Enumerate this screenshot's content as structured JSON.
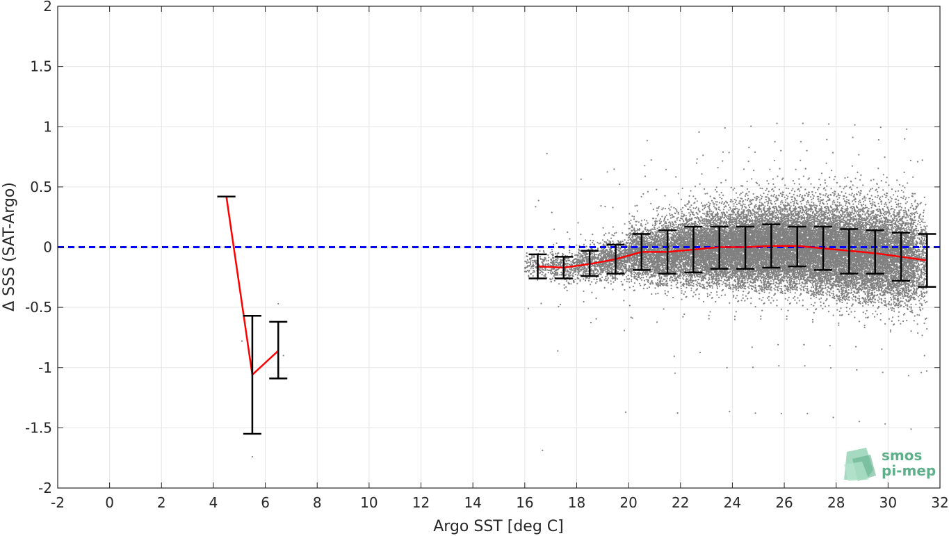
{
  "chart_data": {
    "type": "scatter",
    "xlabel": "Argo SST [deg C]",
    "ylabel": "Δ SSS (SAT-Argo)",
    "xlim": [
      -2,
      32
    ],
    "ylim": [
      -2,
      2
    ],
    "xticks": [
      -2,
      0,
      2,
      4,
      6,
      8,
      10,
      12,
      14,
      16,
      18,
      20,
      22,
      24,
      26,
      28,
      30,
      32
    ],
    "yticks": [
      -2,
      -1.5,
      -1,
      -0.5,
      0,
      0.5,
      1,
      1.5,
      2
    ],
    "xtick_labels": [
      "-2",
      "0",
      "2",
      "4",
      "6",
      "8",
      "10",
      "12",
      "14",
      "16",
      "18",
      "20",
      "22",
      "24",
      "26",
      "28",
      "30",
      "32"
    ],
    "ytick_labels": [
      "-2",
      "-1.5",
      "-1",
      "-0.5",
      "0",
      "0.5",
      "1",
      "1.5",
      "2"
    ],
    "grid": true,
    "reference_line": {
      "y": 0,
      "style": "dashed",
      "color": "#0000ff"
    },
    "scatter_color": "#808080",
    "mean_line_color": "#ff0000",
    "errorbar_color": "#000000",
    "scatter_cloud": {
      "description_points": [
        [
          18,
          -0.15,
          0.1,
          0.15
        ],
        [
          20,
          -0.05,
          0.2,
          0.25
        ],
        [
          22,
          -0.02,
          0.3,
          0.3
        ],
        [
          24,
          0.0,
          0.35,
          0.35
        ],
        [
          26,
          0.0,
          0.4,
          0.4
        ],
        [
          28,
          -0.02,
          0.45,
          0.45
        ],
        [
          30,
          -0.05,
          0.45,
          0.4
        ],
        [
          31,
          -0.08,
          0.35,
          0.3
        ]
      ]
    },
    "binned_stats": [
      {
        "x": 4.5,
        "mean": 0.42,
        "lower": 0.42,
        "upper": 0.42
      },
      {
        "x": 5.5,
        "mean": -1.06,
        "lower": -1.55,
        "upper": -0.57
      },
      {
        "x": 6.5,
        "mean": -0.86,
        "lower": -1.09,
        "upper": -0.62
      },
      {
        "x": 16.5,
        "mean": -0.16,
        "lower": -0.26,
        "upper": -0.06
      },
      {
        "x": 17.5,
        "mean": -0.17,
        "lower": -0.26,
        "upper": -0.08
      },
      {
        "x": 18.5,
        "mean": -0.14,
        "lower": -0.24,
        "upper": -0.03
      },
      {
        "x": 19.5,
        "mean": -0.1,
        "lower": -0.22,
        "upper": 0.02
      },
      {
        "x": 20.5,
        "mean": -0.04,
        "lower": -0.19,
        "upper": 0.11
      },
      {
        "x": 21.5,
        "mean": -0.04,
        "lower": -0.22,
        "upper": 0.14
      },
      {
        "x": 22.5,
        "mean": -0.02,
        "lower": -0.21,
        "upper": 0.17
      },
      {
        "x": 23.5,
        "mean": 0.0,
        "lower": -0.18,
        "upper": 0.17
      },
      {
        "x": 24.5,
        "mean": 0.0,
        "lower": -0.18,
        "upper": 0.17
      },
      {
        "x": 25.5,
        "mean": 0.01,
        "lower": -0.17,
        "upper": 0.19
      },
      {
        "x": 26.5,
        "mean": 0.01,
        "lower": -0.16,
        "upper": 0.17
      },
      {
        "x": 27.5,
        "mean": -0.01,
        "lower": -0.19,
        "upper": 0.17
      },
      {
        "x": 28.5,
        "mean": -0.03,
        "lower": -0.22,
        "upper": 0.15
      },
      {
        "x": 29.5,
        "mean": -0.05,
        "lower": -0.22,
        "upper": 0.14
      },
      {
        "x": 30.5,
        "mean": -0.08,
        "lower": -0.28,
        "upper": 0.12
      },
      {
        "x": 31.5,
        "mean": -0.11,
        "lower": -0.33,
        "upper": 0.11
      }
    ]
  },
  "logo": {
    "line1": "smos",
    "line2": "pi-mep"
  }
}
